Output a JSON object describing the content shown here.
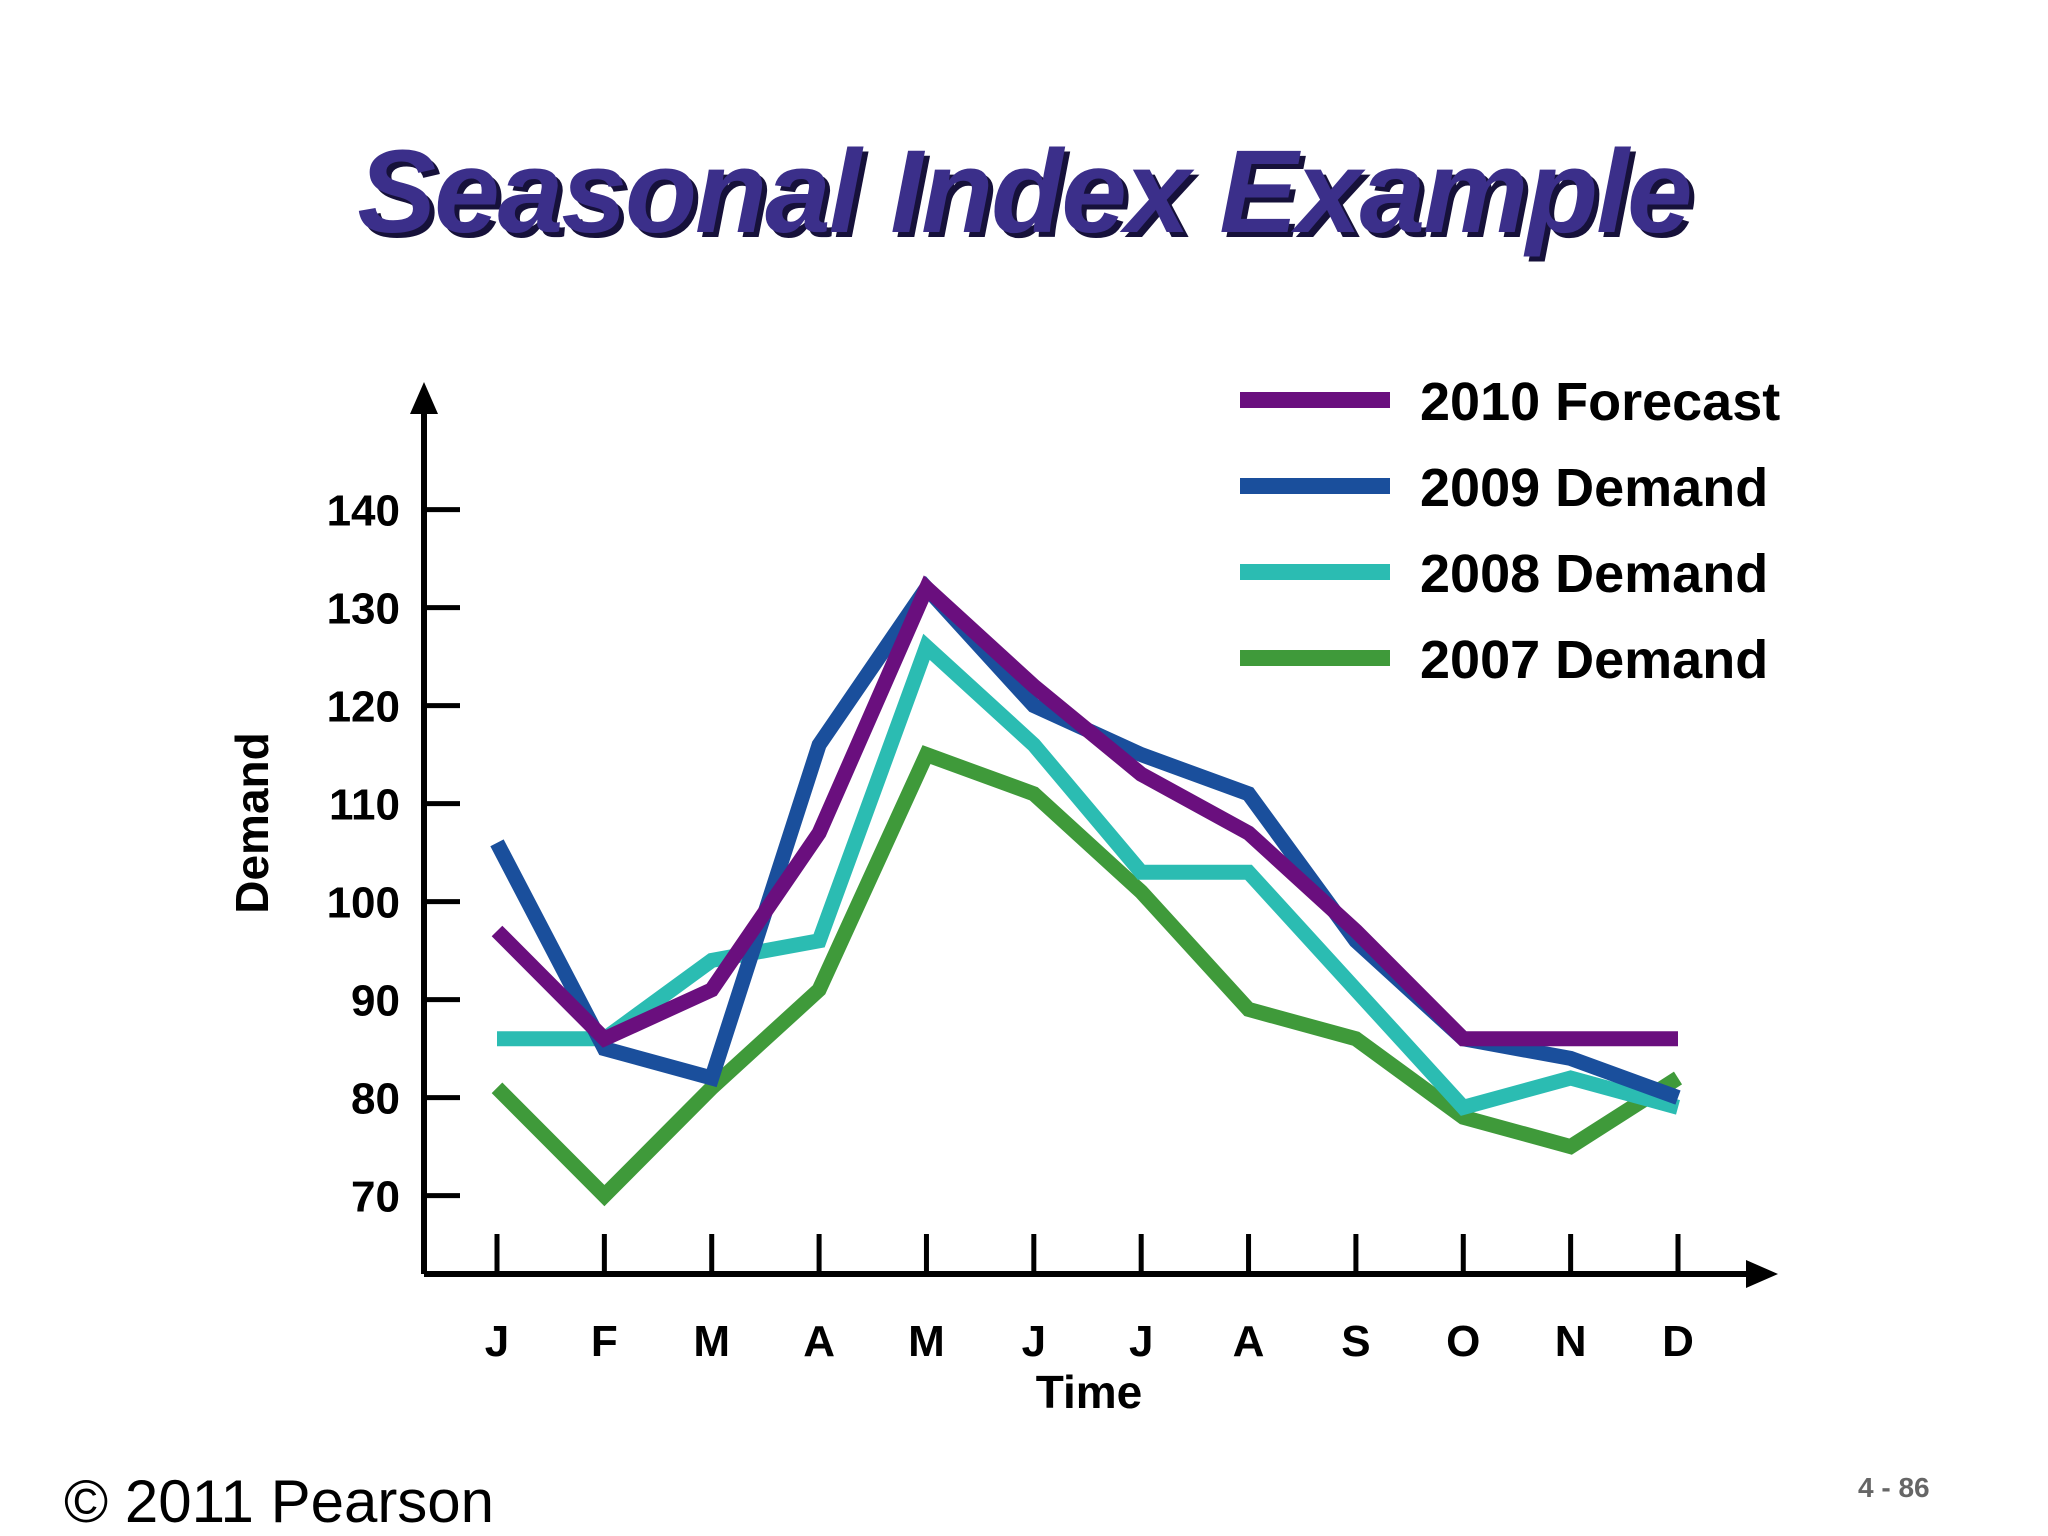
{
  "slide": {
    "title": "Seasonal Index Example",
    "copyright": "© 2011 Pearson",
    "page_number": "4 - 86"
  },
  "chart_data": {
    "type": "line",
    "title": "",
    "xlabel": "Time",
    "ylabel": "Demand",
    "categories": [
      "J",
      "F",
      "M",
      "A",
      "M",
      "J",
      "J",
      "A",
      "S",
      "O",
      "N",
      "D"
    ],
    "y_ticks": [
      "70",
      "80",
      "90",
      "100",
      "110",
      "120",
      "130",
      "140"
    ],
    "ylim": [
      62,
      152
    ],
    "grid": false,
    "legend_position": "top-right",
    "series": [
      {
        "name": "2010 Forecast",
        "color": "#6a0f7e",
        "values": [
          97,
          86,
          91,
          107,
          132,
          122,
          113,
          107,
          97,
          86,
          86,
          86
        ]
      },
      {
        "name": "2009 Demand",
        "color": "#1a4f9c",
        "values": [
          106,
          85,
          82,
          116,
          132,
          120,
          115,
          111,
          96,
          86,
          84,
          80
        ]
      },
      {
        "name": "2008 Demand",
        "color": "#2bbcb2",
        "values": [
          86,
          86,
          94,
          96,
          126,
          116,
          103,
          103,
          91,
          79,
          82,
          79
        ]
      },
      {
        "name": "2007 Demand",
        "color": "#3f9a3a",
        "values": [
          81,
          70,
          81,
          91,
          115,
          111,
          101,
          89,
          86,
          78,
          75,
          82
        ]
      }
    ]
  }
}
